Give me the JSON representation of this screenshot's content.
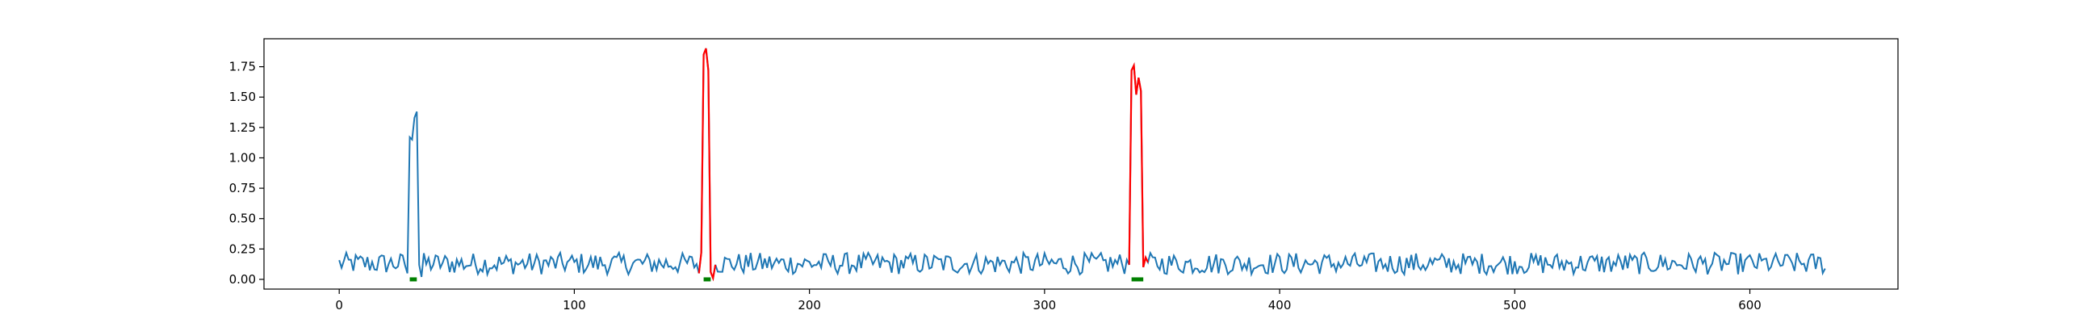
{
  "chart_data": {
    "type": "line",
    "title": "",
    "xlabel": "",
    "ylabel": "",
    "xlim": [
      -32,
      663
    ],
    "ylim": [
      -0.08,
      1.98
    ],
    "x_ticks": [
      0,
      100,
      200,
      300,
      400,
      500,
      600
    ],
    "x_tick_labels": [
      "0",
      "100",
      "200",
      "300",
      "400",
      "500",
      "600"
    ],
    "y_ticks": [
      0.0,
      0.25,
      0.5,
      0.75,
      1.0,
      1.25,
      1.5,
      1.75
    ],
    "y_tick_labels": [
      "0.00",
      "0.25",
      "0.50",
      "0.75",
      "1.00",
      "1.25",
      "1.50",
      "1.75"
    ],
    "grid": false,
    "legend": "none",
    "colors": {
      "signal": "#1f77b4",
      "highlight": "#ff0000",
      "marker": "#008000"
    },
    "signal": {
      "color": "#1f77b4",
      "x_start": 0,
      "x_end": 632,
      "baseline_mean": 0.13,
      "baseline_amplitude": 0.1,
      "spikes": [
        {
          "x": [
            29,
            30,
            31,
            32,
            33,
            34,
            35
          ],
          "y": [
            0.05,
            1.17,
            1.15,
            1.33,
            1.38,
            0.12,
            0.02
          ]
        }
      ]
    },
    "highlighted_segments": [
      {
        "color": "#ff0000",
        "x": [
          153,
          154,
          155,
          156,
          157,
          158,
          159,
          160
        ],
        "y": [
          0.05,
          0.22,
          1.85,
          1.9,
          1.72,
          0.06,
          0.01,
          0.12
        ]
      },
      {
        "color": "#ff0000",
        "x": [
          336,
          337,
          338,
          339,
          340,
          341,
          342,
          343,
          344
        ],
        "y": [
          0.12,
          1.72,
          1.76,
          1.52,
          1.66,
          1.55,
          0.1,
          0.18,
          0.14
        ]
      }
    ],
    "markers": [
      {
        "color": "#008000",
        "x_start": 30,
        "x_end": 33,
        "y": 0.0
      },
      {
        "color": "#008000",
        "x_start": 155,
        "x_end": 158,
        "y": 0.0
      },
      {
        "color": "#008000",
        "x_start": 337,
        "x_end": 342,
        "y": 0.0
      }
    ]
  }
}
